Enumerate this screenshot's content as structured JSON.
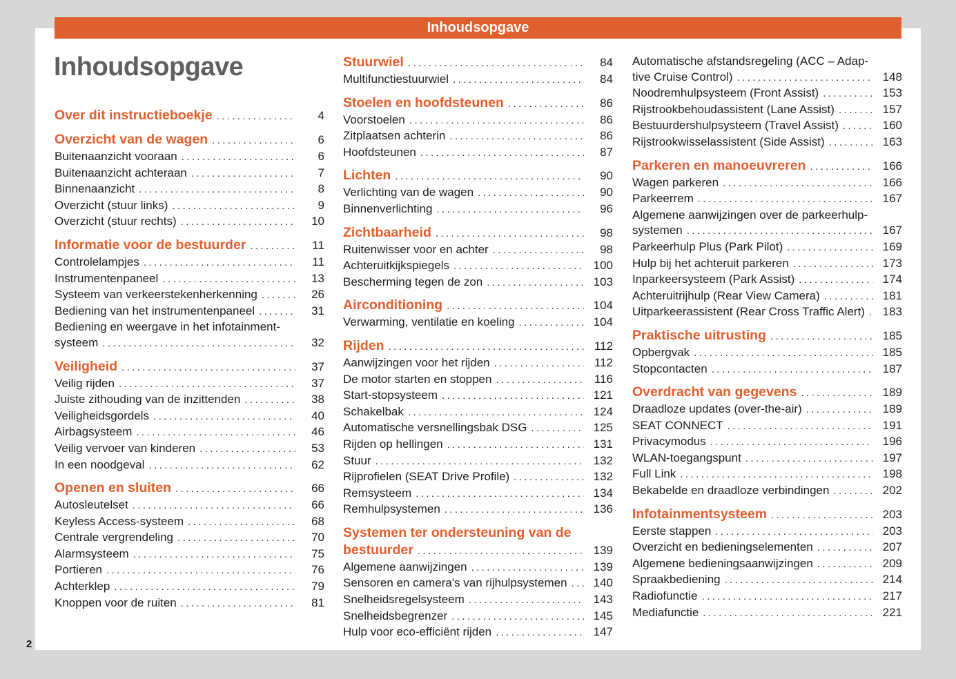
{
  "banner": "Inhoudsopgave",
  "title": "Inhoudsopgave",
  "page_number": "2",
  "colors": {
    "accent": "#e05f2f",
    "title": "#5f5f5f",
    "background": "#d7d7d6"
  },
  "columns": [
    [
      {
        "h": true,
        "t": "Over dit instructieboekje",
        "p": "4"
      },
      {
        "h": true,
        "t": "Overzicht van de wagen",
        "p": "6"
      },
      {
        "t": "Buitenaanzicht vooraan",
        "p": "6"
      },
      {
        "t": "Buitenaanzicht achteraan",
        "p": "7"
      },
      {
        "t": "Binnenaanzicht",
        "p": "8"
      },
      {
        "t": "Overzicht (stuur links)",
        "p": "9"
      },
      {
        "t": "Overzicht (stuur rechts)",
        "p": "10"
      },
      {
        "h": true,
        "t": "Informatie voor de bestuurder",
        "p": "11"
      },
      {
        "t": "Controlelampjes",
        "p": "11"
      },
      {
        "t": "Instrumentenpaneel",
        "p": "13"
      },
      {
        "t": "Systeem van verkeerstekenherkenning",
        "p": "26"
      },
      {
        "t": "Bediening van het instrumentenpaneel",
        "p": "31"
      },
      {
        "w": "Bediening en weergave in het infotainment-",
        "t": "systeem",
        "p": "32"
      },
      {
        "h": true,
        "t": "Veiligheid",
        "p": "37"
      },
      {
        "t": "Veilig rijden",
        "p": "37"
      },
      {
        "t": "Juiste zithouding van de inzittenden",
        "p": "38"
      },
      {
        "t": "Veiligheidsgordels",
        "p": "40"
      },
      {
        "t": "Airbagsysteem",
        "p": "46"
      },
      {
        "t": "Veilig vervoer van kinderen",
        "p": "53"
      },
      {
        "t": "In een noodgeval",
        "p": "62"
      },
      {
        "h": true,
        "t": "Openen en sluiten",
        "p": "66"
      },
      {
        "t": "Autosleutelset",
        "p": "66"
      },
      {
        "t": "Keyless Access-systeem",
        "p": "68"
      },
      {
        "t": "Centrale vergrendeling",
        "p": "70"
      },
      {
        "t": "Alarmsysteem",
        "p": "75"
      },
      {
        "t": "Portieren",
        "p": "76"
      },
      {
        "t": "Achterklep",
        "p": "79"
      },
      {
        "t": "Knoppen voor de ruiten",
        "p": "81"
      }
    ],
    [
      {
        "h": true,
        "t": "Stuurwiel",
        "p": "84"
      },
      {
        "t": "Multifunctiestuurwiel",
        "p": "84"
      },
      {
        "h": true,
        "t": "Stoelen en hoofdsteunen",
        "p": "86"
      },
      {
        "t": "Voorstoelen",
        "p": "86"
      },
      {
        "t": "Zitplaatsen achterin",
        "p": "86"
      },
      {
        "t": "Hoofdsteunen",
        "p": "87"
      },
      {
        "h": true,
        "t": "Lichten",
        "p": "90"
      },
      {
        "t": "Verlichting van de wagen",
        "p": "90"
      },
      {
        "t": "Binnenverlichting",
        "p": "96"
      },
      {
        "h": true,
        "t": "Zichtbaarheid",
        "p": "98"
      },
      {
        "t": "Ruitenwisser voor en achter",
        "p": "98"
      },
      {
        "t": "Achteruitkijkspiegels",
        "p": "100"
      },
      {
        "t": "Bescherming tegen de zon",
        "p": "103"
      },
      {
        "h": true,
        "t": "Airconditioning",
        "p": "104"
      },
      {
        "t": "Verwarming, ventilatie en koeling",
        "p": "104"
      },
      {
        "h": true,
        "t": "Rijden",
        "p": "112"
      },
      {
        "t": "Aanwijzingen voor het rijden",
        "p": "112"
      },
      {
        "t": "De motor starten en stoppen",
        "p": "116"
      },
      {
        "t": "Start-stopsysteem",
        "p": "121"
      },
      {
        "t": "Schakelbak",
        "p": "124"
      },
      {
        "t": "Automatische versnellingsbak DSG",
        "p": "125"
      },
      {
        "t": "Rijden op hellingen",
        "p": "131"
      },
      {
        "t": "Stuur",
        "p": "132"
      },
      {
        "t": "Rijprofielen (SEAT Drive Profile)",
        "p": "132"
      },
      {
        "t": "Remsysteem",
        "p": "134"
      },
      {
        "t": "Remhulpsystemen",
        "p": "136"
      },
      {
        "h": true,
        "w": "Systemen ter ondersteuning van de",
        "t": "bestuurder",
        "p": "139"
      },
      {
        "t": "Algemene aanwijzingen",
        "p": "139"
      },
      {
        "t": "Sensoren en camera's van rijhulpsystemen",
        "p": "140"
      },
      {
        "t": "Snelheidsregelsysteem",
        "p": "143"
      },
      {
        "t": "Snelheidsbegrenzer",
        "p": "145"
      },
      {
        "t": "Hulp voor eco-efficiënt rijden",
        "p": "147"
      }
    ],
    [
      {
        "w": "Automatische afstandsregeling (ACC – Adap-",
        "t": "tive Cruise Control)",
        "p": "148"
      },
      {
        "t": "Noodremhulpsysteem (Front Assist)",
        "p": "153"
      },
      {
        "t": "Rijstrookbehoudassistent (Lane Assist)",
        "p": "157"
      },
      {
        "t": "Bestuurdershulpsysteem (Travel Assist)",
        "p": "160"
      },
      {
        "t": "Rijstrookwisselassistent (Side Assist)",
        "p": "163"
      },
      {
        "h": true,
        "t": "Parkeren en manoeuvreren",
        "p": "166"
      },
      {
        "t": "Wagen parkeren",
        "p": "166"
      },
      {
        "t": "Parkeerrem",
        "p": "167"
      },
      {
        "w": "Algemene aanwijzingen over de parkeerhulp-",
        "t": "systemen",
        "p": "167"
      },
      {
        "t": "Parkeerhulp Plus (Park Pilot)",
        "p": "169"
      },
      {
        "t": "Hulp bij het achteruit parkeren",
        "p": "173"
      },
      {
        "t": "Inparkeersysteem (Park Assist)",
        "p": "174"
      },
      {
        "t": "Achteruitrijhulp (Rear View Camera)",
        "p": "181"
      },
      {
        "t": "Uitparkeerassistent (Rear Cross Traffic Alert)",
        "p": "183"
      },
      {
        "h": true,
        "t": "Praktische uitrusting",
        "p": "185"
      },
      {
        "t": "Opbergvak",
        "p": "185"
      },
      {
        "t": "Stopcontacten",
        "p": "187"
      },
      {
        "h": true,
        "t": "Overdracht van gegevens",
        "p": "189"
      },
      {
        "t": "Draadloze updates (over-the-air)",
        "p": "189"
      },
      {
        "t": "SEAT CONNECT",
        "p": "191"
      },
      {
        "t": "Privacymodus",
        "p": "196"
      },
      {
        "t": "WLAN-toegangspunt",
        "p": "197"
      },
      {
        "t": "Full Link",
        "p": "198"
      },
      {
        "t": "Bekabelde en draadloze verbindingen",
        "p": "202"
      },
      {
        "h": true,
        "t": "Infotainmentsysteem",
        "p": "203"
      },
      {
        "t": "Eerste stappen",
        "p": "203"
      },
      {
        "t": "Overzicht en bedieningselementen",
        "p": "207"
      },
      {
        "t": "Algemene bedieningsaanwijzingen",
        "p": "209"
      },
      {
        "t": "Spraakbediening",
        "p": "214"
      },
      {
        "t": "Radiofunctie",
        "p": "217"
      },
      {
        "t": "Mediafunctie",
        "p": "221"
      }
    ]
  ]
}
